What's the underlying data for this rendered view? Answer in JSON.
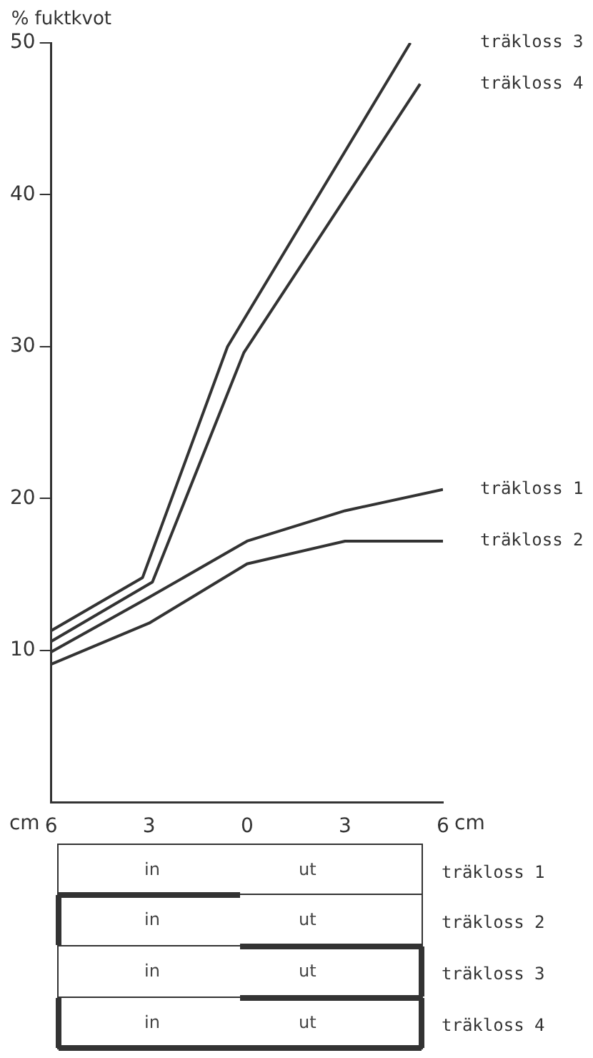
{
  "chart_data": {
    "type": "line",
    "ylabel": "% fuktkvot",
    "xlabel": "cm",
    "xlim": [
      -6,
      6
    ],
    "xticks": [
      {
        "value": -6,
        "label": "6"
      },
      {
        "value": -3,
        "label": "3"
      },
      0,
      3,
      6
    ],
    "ylim": [
      0,
      50
    ],
    "yticks": [
      10,
      20,
      30,
      40,
      50
    ],
    "grid": false,
    "legend": false,
    "marker": "none",
    "line_style": "solid",
    "series": [
      {
        "name": "träkloss 1",
        "color": "#333333",
        "x": [
          -6,
          -3,
          0,
          3,
          6
        ],
        "values": [
          9.9,
          13.5,
          17.2,
          19.2,
          20.6
        ]
      },
      {
        "name": "träkloss 2",
        "color": "#333333",
        "x": [
          -6,
          -3,
          0,
          3,
          6
        ],
        "values": [
          9.1,
          11.8,
          15.7,
          17.2,
          17.2
        ]
      },
      {
        "name": "träkloss 3",
        "color": "#333333",
        "x": [
          -6,
          -3.2,
          -0.6,
          5
        ],
        "values": [
          11.3,
          14.8,
          30,
          50
        ]
      },
      {
        "name": "träkloss 4",
        "color": "#333333",
        "x": [
          -6,
          -2.9,
          -0.1,
          5.3
        ],
        "values": [
          10.6,
          14.5,
          29.6,
          47.3
        ]
      }
    ],
    "annotations": [
      "in",
      "ut"
    ]
  }
}
